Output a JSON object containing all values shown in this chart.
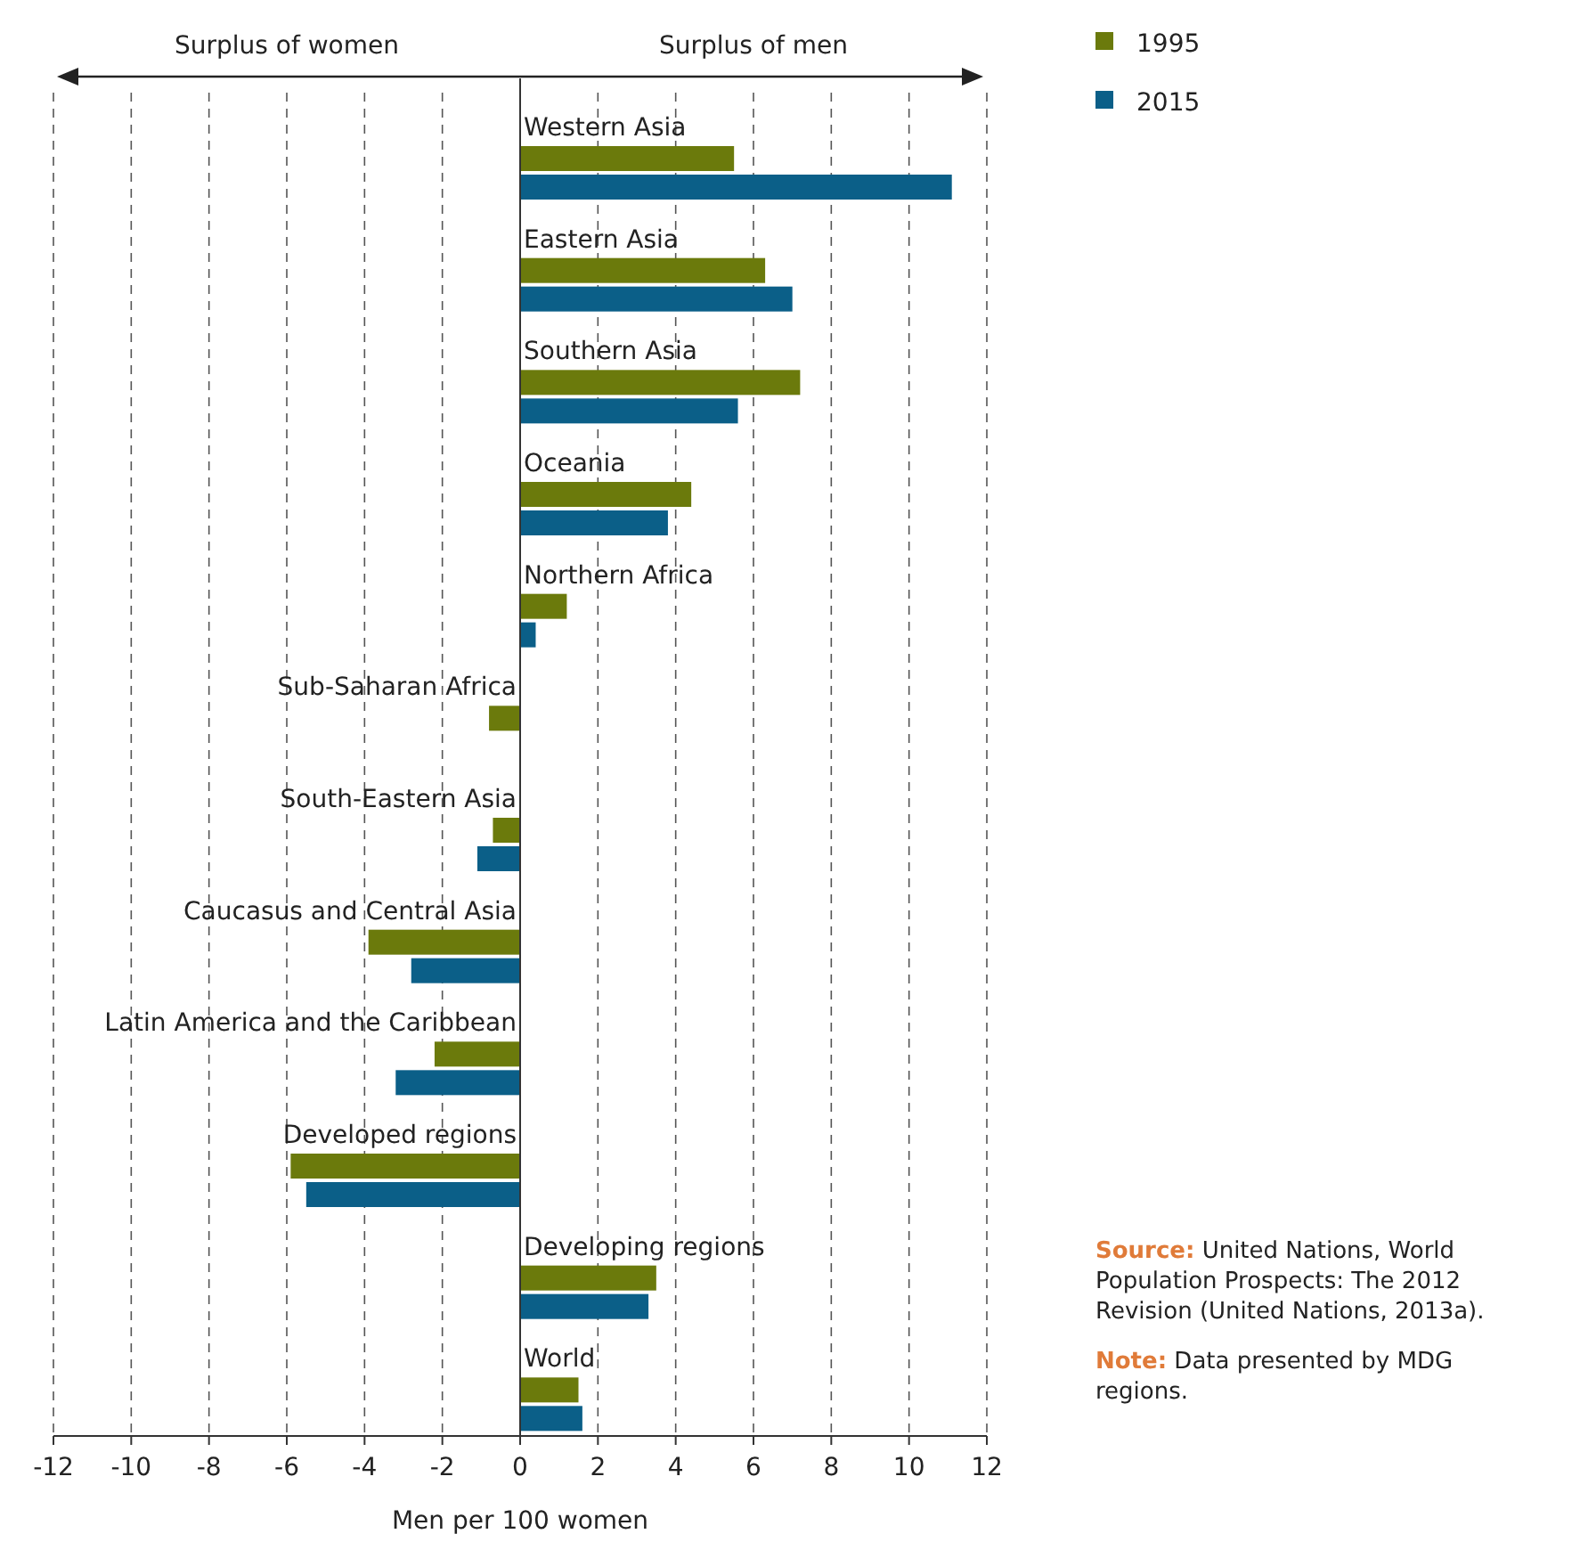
{
  "chart_data": {
    "type": "bar",
    "orientation": "horizontal",
    "xlabel": "Men per 100 women",
    "categories": [
      "Western Asia",
      "Eastern Asia",
      "Southern Asia",
      "Oceania",
      "Northern Africa",
      "Sub-Saharan Africa",
      "South-Eastern Asia",
      "Caucasus and Central Asia",
      "Latin America and the Caribbean",
      "Developed regions",
      "Developing regions",
      "World"
    ],
    "series": [
      {
        "name": "1995",
        "color": "#6b7a0c",
        "values": [
          5.5,
          6.3,
          7.2,
          4.4,
          1.2,
          -0.8,
          -0.7,
          -3.9,
          -2.2,
          -5.9,
          3.5,
          1.5
        ]
      },
      {
        "name": "2015",
        "color": "#0b5f88",
        "values": [
          11.1,
          7.0,
          5.6,
          3.8,
          0.4,
          null,
          -1.1,
          -2.8,
          -3.2,
          -5.5,
          3.3,
          1.6
        ]
      }
    ],
    "xlim": [
      -12,
      12
    ],
    "xticks": [
      -12,
      -10,
      -8,
      -6,
      -4,
      -2,
      0,
      2,
      4,
      6,
      8,
      10,
      12
    ],
    "grid": "x",
    "legend": "top right",
    "annotations": [
      "Surplus of women",
      "Surplus of men",
      "Source: United Nations, World Population Prospects: The 2012 Revision (United Nations, 2013a).",
      "Note: Data presented by MDG regions."
    ]
  }
}
